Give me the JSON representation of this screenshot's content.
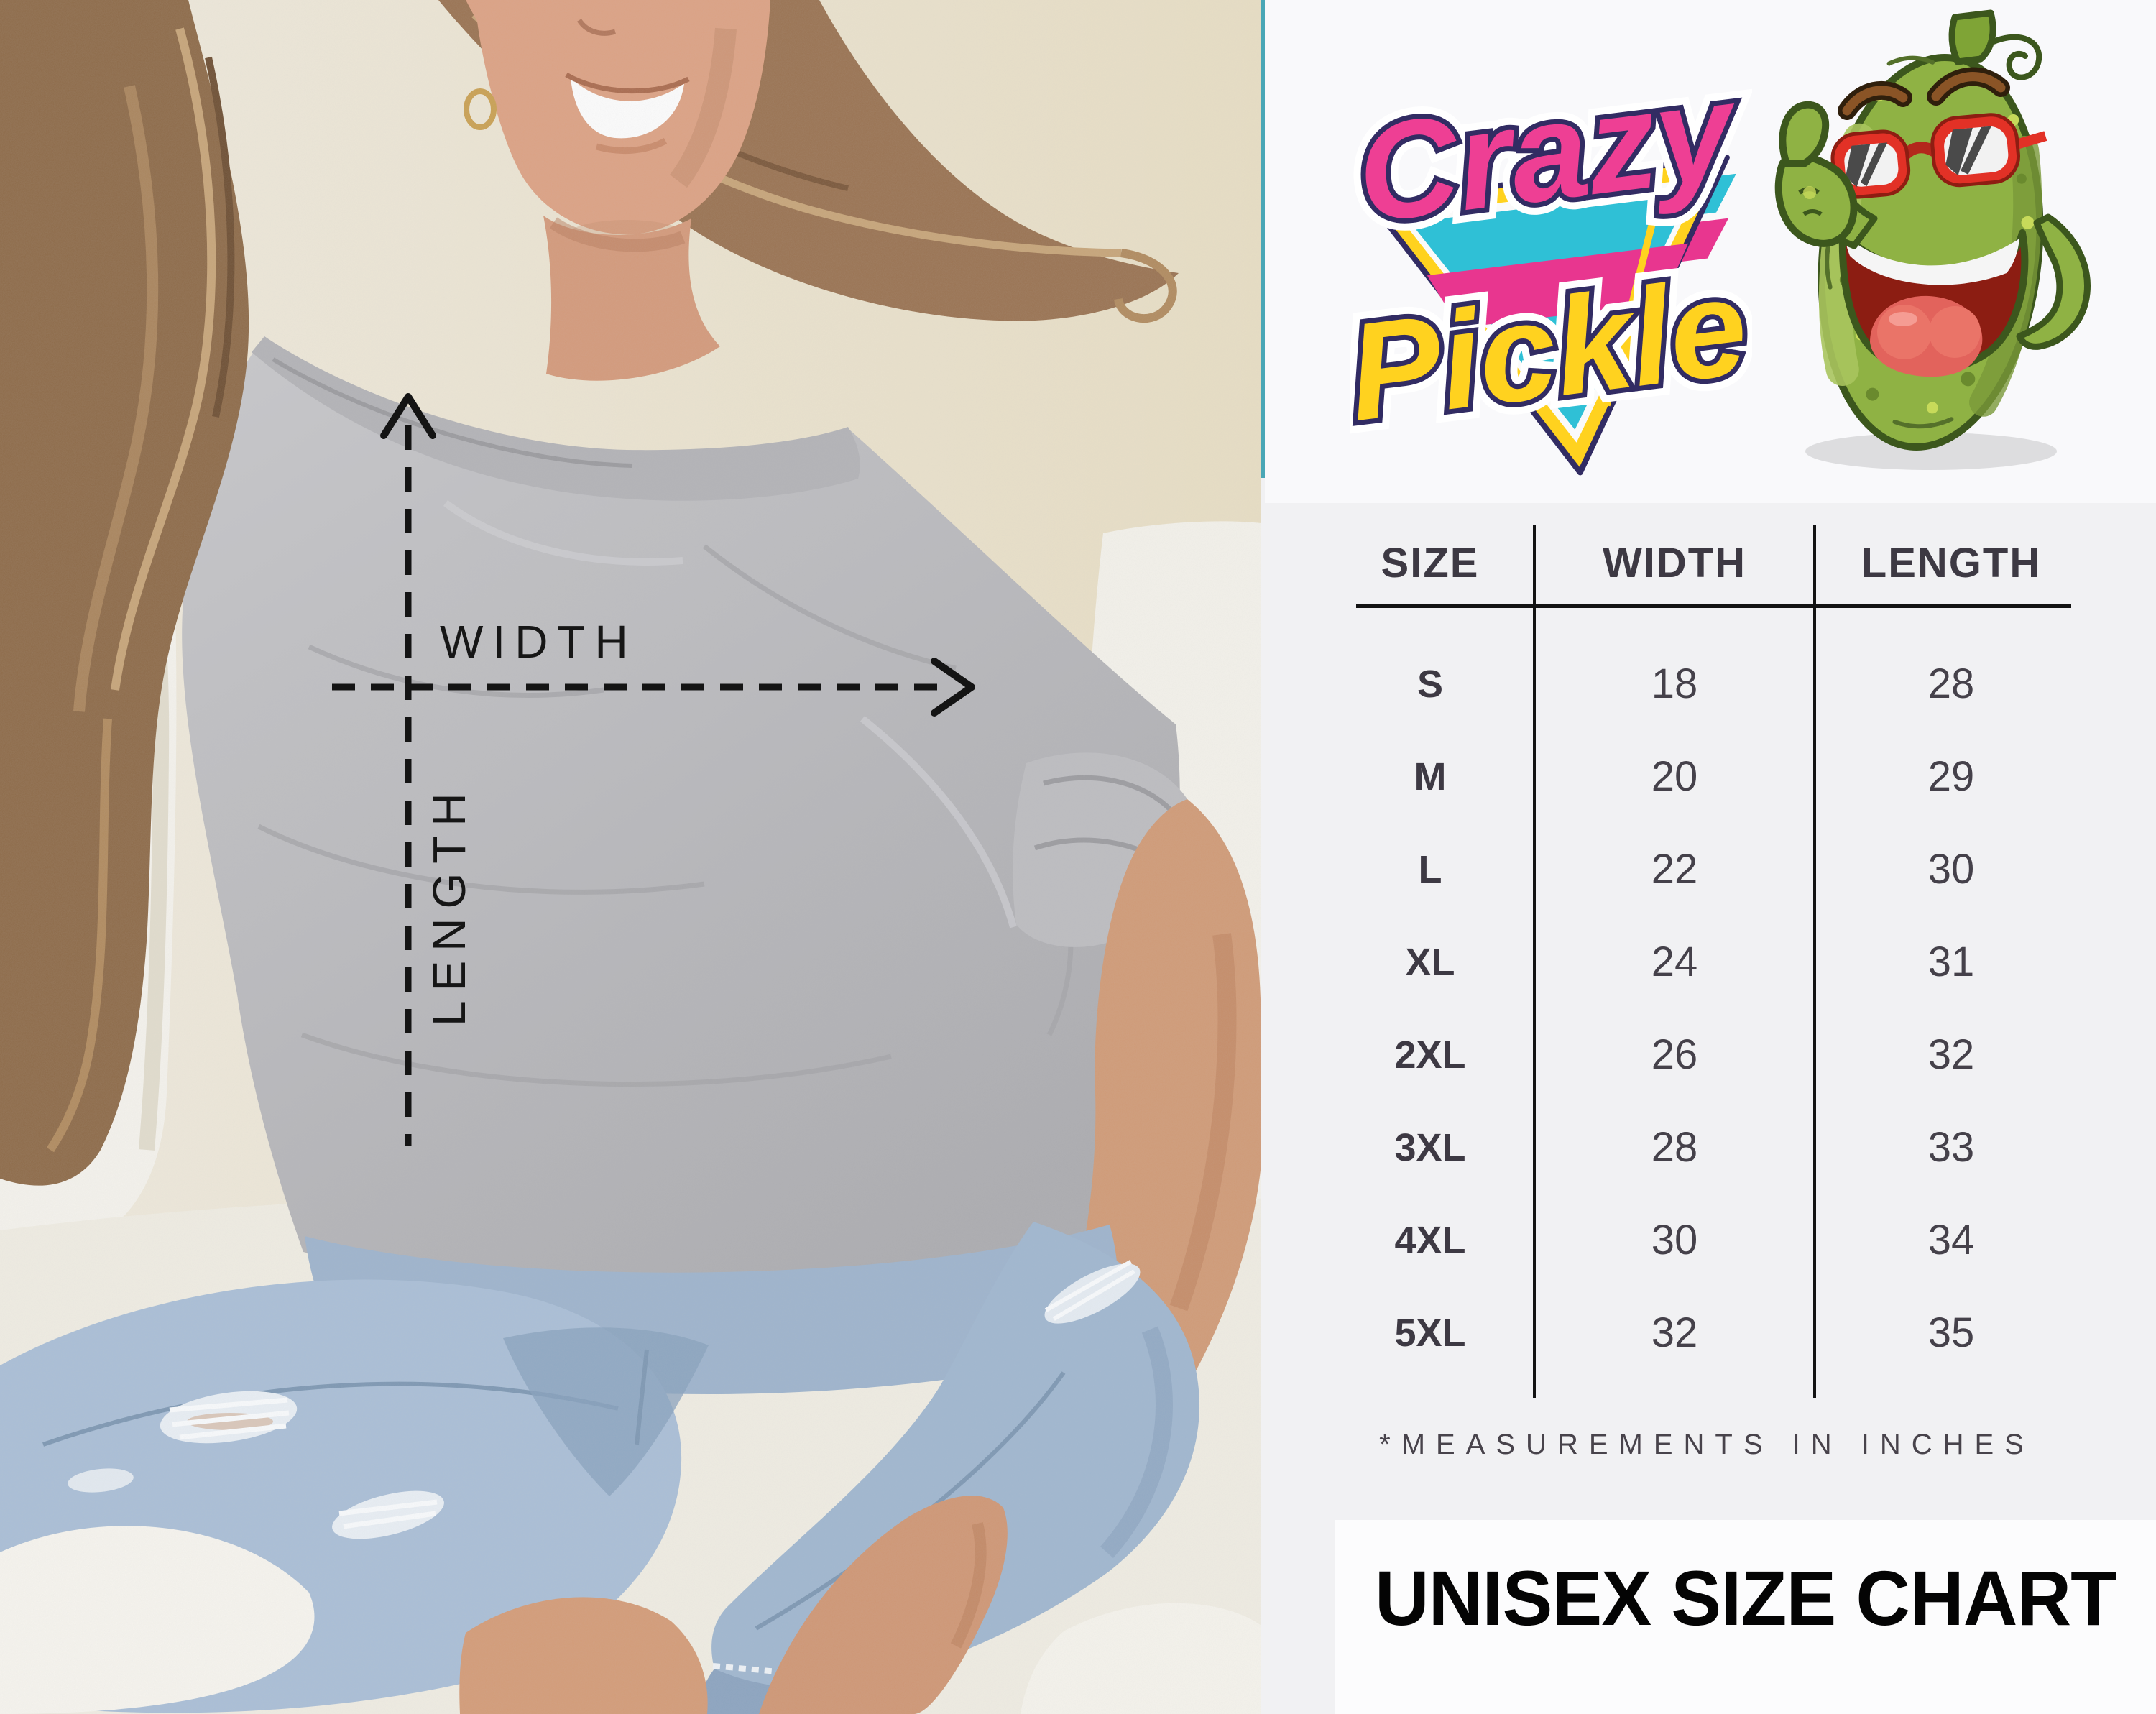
{
  "measurement_overlay": {
    "width_label": "WIDTH",
    "length_label": "LENGTH"
  },
  "brand": {
    "line1": "Crazy",
    "line2": "Pickle"
  },
  "chart_data": {
    "type": "table",
    "title": "UNISEX SIZE CHART",
    "columns": [
      "SIZE",
      "WIDTH",
      "LENGTH"
    ],
    "rows": [
      [
        "S",
        18,
        28
      ],
      [
        "M",
        20,
        29
      ],
      [
        "L",
        22,
        30
      ],
      [
        "XL",
        24,
        31
      ],
      [
        "2XL",
        26,
        32
      ],
      [
        "3XL",
        28,
        33
      ],
      [
        "4XL",
        30,
        34
      ],
      [
        "5XL",
        32,
        35
      ]
    ],
    "note": "*MEASUREMENTS IN INCHES",
    "units": "inches"
  },
  "colors": {
    "accent_teal": "#4aa7b6",
    "logo_magenta": "#e8368f",
    "logo_teal": "#2fc0d6",
    "logo_yellow": "#ffd21f",
    "logo_navy": "#322c63",
    "pickle_green": "#8fb244",
    "glasses_red": "#e23126",
    "table_text": "#3d3943",
    "title_black": "#040404"
  }
}
